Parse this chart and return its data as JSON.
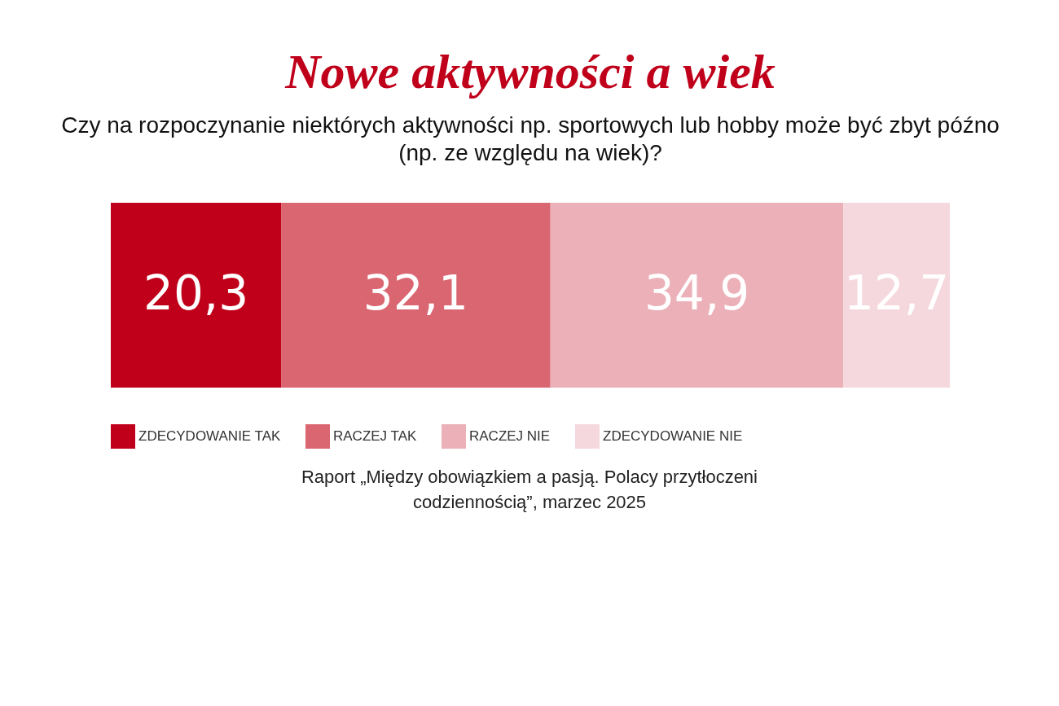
{
  "chart_data": {
    "type": "bar",
    "orientation": "horizontal",
    "stacked": true,
    "title": "Nowe aktywności a wiek",
    "subtitle": "Czy na rozpoczynanie niektórych aktywności np. sportowych lub hobby może być zbyt późno (np. ze względu na wiek)?",
    "categories": [
      null
    ],
    "legend": "bottom",
    "series": [
      {
        "name": "ZDECYDOWANIE TAK",
        "color": "#c0001a",
        "values": [
          20.3
        ],
        "value_labels": [
          "20,3"
        ]
      },
      {
        "name": "RACZEJ TAK",
        "color": "#da6672",
        "values": [
          32.1
        ],
        "value_labels": [
          "32,1"
        ]
      },
      {
        "name": "RACZEJ NIE",
        "color": "#ebb0b8",
        "values": [
          34.9
        ],
        "value_labels": [
          "34,9"
        ]
      },
      {
        "name": "ZDECYDOWANIE NIE",
        "color": "#f5d8dd",
        "values": [
          12.7
        ],
        "value_labels": [
          "12,7"
        ]
      }
    ],
    "annotations": [
      "Raport „Między obowiązkiem a pasją. Polacy przytłoczeni codziennością”, marzec 2025"
    ]
  }
}
